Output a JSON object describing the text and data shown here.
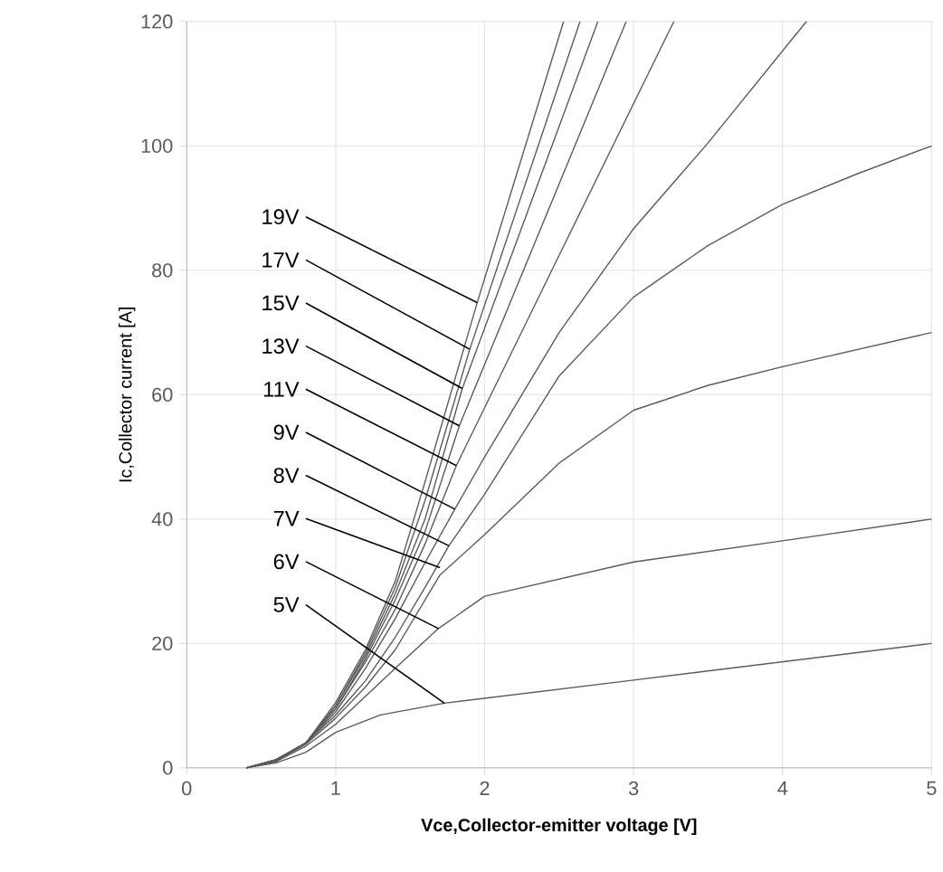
{
  "chart_data": {
    "type": "line",
    "xlabel": "Vce,Collector-emitter voltage [V]",
    "ylabel": "Ic,Collector current [A]",
    "xlim": [
      0,
      5
    ],
    "ylim": [
      0,
      120
    ],
    "xticks": [
      0,
      1,
      2,
      3,
      4,
      5
    ],
    "yticks": [
      0,
      20,
      40,
      60,
      80,
      100,
      120
    ],
    "grid": true,
    "series": [
      {
        "color": "#5a5a5a",
        "x": [
          0.4,
          0.6,
          0.8,
          1.0,
          1.3,
          1.73,
          3,
          5
        ],
        "values": [
          0,
          0.8,
          2.5,
          5.7,
          8.5,
          10.4,
          14.1,
          20
        ]
      },
      {
        "color": "#5a5a5a",
        "x": [
          0.4,
          0.6,
          0.8,
          1.0,
          1.2,
          1.4,
          1.69,
          2,
          3,
          4,
          5
        ],
        "values": [
          0,
          1,
          3.5,
          7,
          11.5,
          16,
          22.4,
          27.6,
          33.1,
          36.5,
          40
        ]
      },
      {
        "color": "#5a5a5a",
        "x": [
          0.4,
          0.6,
          0.8,
          1.0,
          1.2,
          1.4,
          1.7,
          2,
          2.5,
          3,
          3.5,
          4,
          5
        ],
        "values": [
          0,
          1.1,
          3.8,
          8,
          13,
          19,
          31,
          37.5,
          49,
          57.5,
          61.5,
          64.5,
          70
        ]
      },
      {
        "color": "#5a5a5a",
        "x": [
          0.4,
          0.6,
          0.8,
          1.0,
          1.2,
          1.4,
          1.6,
          1.76,
          2,
          2.5,
          3,
          3.5,
          4,
          4.5,
          5
        ],
        "values": [
          0,
          1.2,
          4,
          8.5,
          14,
          21,
          29,
          35.7,
          44,
          63,
          75.7,
          84,
          90.6,
          95.5,
          100
        ]
      },
      {
        "color": "#5a5a5a",
        "x": [
          0.4,
          0.6,
          0.8,
          1.0,
          1.2,
          1.4,
          1.6,
          1.8,
          2,
          2.5,
          3,
          3.5,
          4.16
        ],
        "values": [
          0,
          1.2,
          4,
          9,
          16,
          24,
          33,
          41.6,
          50,
          70,
          86.7,
          100.5,
          120
        ]
      },
      {
        "color": "#5a5a5a",
        "x": [
          0.4,
          0.6,
          0.8,
          1.0,
          1.2,
          1.4,
          1.6,
          1.81,
          2.5,
          3.27
        ],
        "values": [
          0,
          1.3,
          4,
          9.5,
          17,
          25.5,
          36,
          48.6,
          82.4,
          120
        ]
      },
      {
        "color": "#5a5a5a",
        "x": [
          0.4,
          0.6,
          0.8,
          1.0,
          1.2,
          1.4,
          1.6,
          1.83,
          2.95
        ],
        "values": [
          0,
          1.3,
          4,
          9.5,
          17.5,
          27,
          38,
          55,
          120
        ]
      },
      {
        "color": "#5a5a5a",
        "x": [
          0.4,
          0.6,
          0.8,
          1.0,
          1.2,
          1.4,
          1.6,
          1.85,
          2.76
        ],
        "values": [
          0,
          1.3,
          4,
          10,
          18,
          28,
          40,
          61,
          120
        ]
      },
      {
        "color": "#5a5a5a",
        "x": [
          0.4,
          0.6,
          0.8,
          1.0,
          1.2,
          1.4,
          1.6,
          1.9,
          2.64
        ],
        "values": [
          0,
          1.3,
          4,
          10,
          18.5,
          29,
          43,
          67.3,
          120
        ]
      },
      {
        "color": "#5a5a5a",
        "x": [
          0.4,
          0.6,
          0.8,
          1.0,
          1.2,
          1.4,
          1.6,
          1.95,
          2.53
        ],
        "values": [
          0,
          1.3,
          4,
          10.5,
          19,
          30,
          46,
          74.8,
          120
        ]
      }
    ],
    "annotations": [
      {
        "text": "19V",
        "x": 1.95,
        "y": 74.8
      },
      {
        "text": "17V",
        "x": 1.9,
        "y": 67.3
      },
      {
        "text": "15V",
        "x": 1.85,
        "y": 61
      },
      {
        "text": "13V",
        "x": 1.83,
        "y": 55
      },
      {
        "text": "11V",
        "x": 1.81,
        "y": 48.6
      },
      {
        "text": "9V",
        "x": 1.8,
        "y": 41.6
      },
      {
        "text": "8V",
        "x": 1.76,
        "y": 35.7
      },
      {
        "text": "7V",
        "x": 1.7,
        "y": 32.2
      },
      {
        "text": "6V",
        "x": 1.69,
        "y": 22.4
      },
      {
        "text": "5V",
        "x": 1.73,
        "y": 10.4
      }
    ]
  }
}
